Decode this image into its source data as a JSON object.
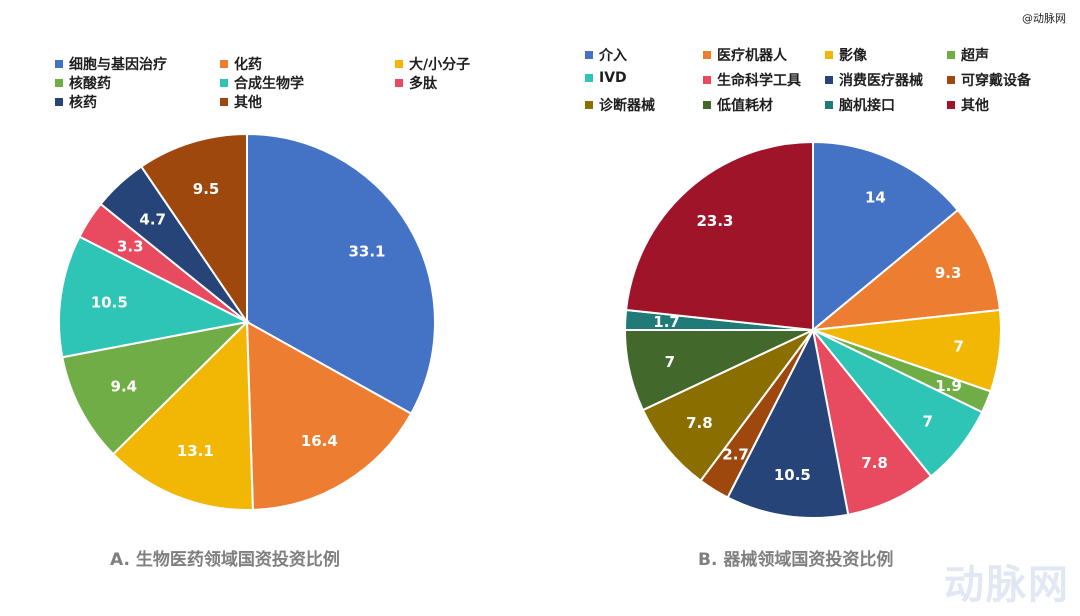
{
  "watermark": {
    "top_text": "@动脉网",
    "logo_text": "动脉网"
  },
  "chart_data": [
    {
      "type": "pie",
      "title": "A. 生物医药领域国资投资比例",
      "categories": [
        "细胞与基因治疗",
        "化药",
        "大/小分子",
        "核酸药",
        "合成生物学",
        "多肽",
        "核药",
        "其他"
      ],
      "values": [
        33.1,
        16.4,
        13.1,
        9.4,
        10.5,
        3.3,
        4.7,
        9.5
      ],
      "labels": [
        "33.1",
        "16.4",
        "13.1",
        "9.4",
        "10.5",
        "3.3",
        "4.7",
        "9.5"
      ],
      "colors": [
        "#4472c4",
        "#ed7d31",
        "#f2b705",
        "#70ad47",
        "#2ec4b6",
        "#e84a5f",
        "#264478",
        "#9e480e"
      ],
      "legend_position": "top"
    },
    {
      "type": "pie",
      "title": "B. 器械领域国资投资比例",
      "categories": [
        "介入",
        "医疗机器人",
        "影像",
        "超声",
        "IVD",
        "生命科学工具",
        "消费医疗器械",
        "可穿戴设备",
        "诊断器械",
        "低值耗材",
        "脑机接口",
        "其他"
      ],
      "values": [
        14,
        9.3,
        7,
        1.9,
        7,
        7.8,
        10.5,
        2.7,
        7.8,
        7,
        1.7,
        23.3
      ],
      "labels": [
        "14",
        "9.3",
        "7",
        "1.9",
        "7",
        "7.8",
        "10.5",
        "2.7",
        "7.8",
        "7",
        "1.7",
        "23.3"
      ],
      "colors": [
        "#4472c4",
        "#ed7d31",
        "#f2b705",
        "#70ad47",
        "#2ec4b6",
        "#e84a5f",
        "#264478",
        "#9e480e",
        "#8a6e00",
        "#43682b",
        "#1f7a78",
        "#a0142a"
      ],
      "legend_position": "top"
    }
  ]
}
